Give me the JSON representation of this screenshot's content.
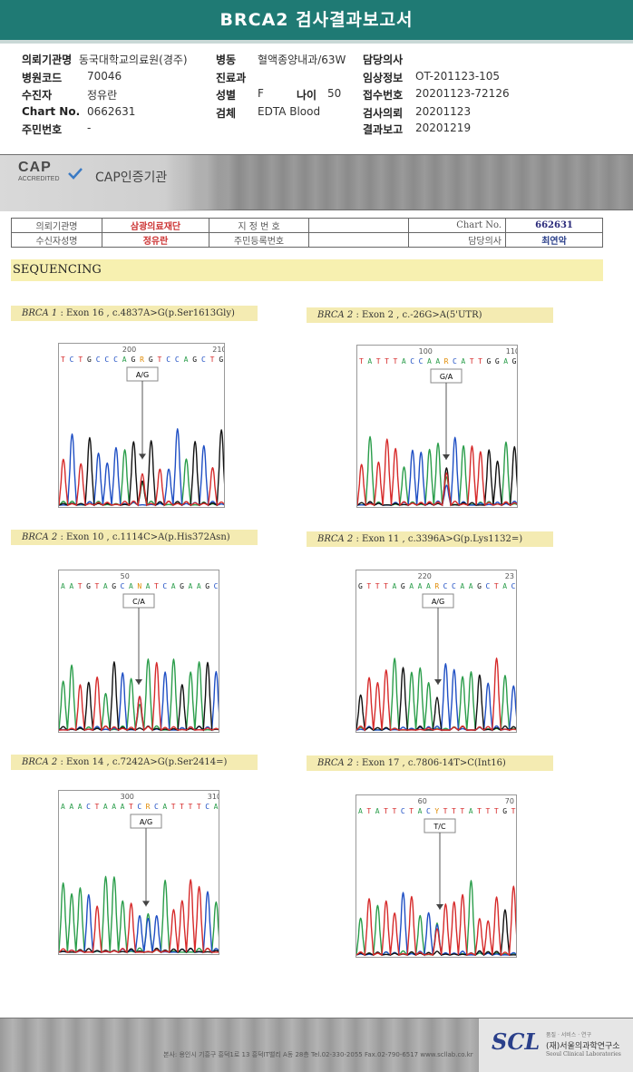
{
  "report": {
    "title": "BRCA2 검사결과보고서"
  },
  "info": {
    "hospital_label": "의뢰기관명",
    "hospital": "동국대학교의료원(경주)",
    "code_label": "병원코드",
    "code": "70046",
    "patient_label": "수진자",
    "patient": "정유란",
    "chart_label": "Chart No.",
    "chart": "0662631",
    "ssn_label": "주민번호",
    "ssn": "-",
    "ward_label": "병동",
    "ward": "혈액종양내과/63W",
    "dept_label": "진료과",
    "dept": "",
    "sex_label": "성별",
    "sex": "F",
    "age_label": "나이",
    "age": "50",
    "specimen_label": "검체",
    "specimen": "EDTA Blood",
    "doctor_label": "담당의사",
    "doctor": "",
    "clinical_label": "임상정보",
    "clinical": "OT-201123-105",
    "receipt_label": "접수번호",
    "receipt": "20201123-72126",
    "request_label": "검사의뢰",
    "request": "20201123",
    "result_label": "결과보고",
    "result": "20201219"
  },
  "banner": {
    "cap_big": "CAP",
    "cap_small": "ACCREDITED",
    "cap_text": "CAP인증기관"
  },
  "mini_table": {
    "r1c1": "의뢰기관명",
    "r1c2": "삼광의료재단",
    "r1c3": "지 정 번 호",
    "r1c4": "",
    "r1c5": "Chart No.",
    "r1c6": "662631",
    "r2c1": "수신자성명",
    "r2c2": "정유란",
    "r2c3": "주민등록번호",
    "r2c4": "",
    "r2c5": "담당의사",
    "r2c6": "최연악"
  },
  "sequencing": {
    "title": "SEQUENCING"
  },
  "panels": [
    {
      "gene": "BRCA 1",
      "desc": " : Exon 16 , c.4837A>G(p.Ser1613Gly)",
      "seq": "T C T G C C C A G R G T C C A G C T G",
      "pos1": "200",
      "pos2": "210",
      "call": "A/G"
    },
    {
      "gene": "BRCA 2",
      "desc": " : Exon 2 , c.-26G>A(5'UTR)",
      "seq": "T A T T T A C C A A R C A T T G G A G",
      "pos1": "100",
      "pos2": "110",
      "call": "G/A"
    },
    {
      "gene": "BRCA 2",
      "desc": " : Exon 10 , c.1114C>A(p.His372Asn)",
      "seq": "A A T G T A G C A N A T C A G A A G C",
      "pos1": "50",
      "pos2": "",
      "call": "C/A"
    },
    {
      "gene": "BRCA 2",
      "desc": " : Exon 11 , c.3396A>G(p.Lys1132=)",
      "seq": "G T T T A G A A A R C C A A G C T A C",
      "pos1": "220",
      "pos2": "23",
      "call": "A/G"
    },
    {
      "gene": "BRCA 2",
      "desc": " : Exon 14 , c.7242A>G(p.Ser2414=)",
      "seq": "A A A C T A A A T C R C A T T T T C A",
      "pos1": "300",
      "pos2": "310",
      "call": "A/G"
    },
    {
      "gene": "BRCA 2",
      "desc": " : Exon 17 , c.7806-14T>C(Int16)",
      "seq": "A T A T T C T A C Y T T T A T T T G T",
      "pos1": "60",
      "pos2": "70",
      "call": "T/C"
    }
  ],
  "footer": {
    "scl": "SCL",
    "scl_tag": "품질 · 서비스 · 연구",
    "scl_name": "(재)서울의과학연구소",
    "scl_en": "Seoul Clinical Laboratories",
    "address": "본사: 용인시 기흥구 흥덕1로 13 흥덕IT밸리 A동 28층  Tel.02-330-2055  Fax.02-790-6517  www.scllab.co.kr"
  },
  "colors": {
    "header": "#1f7a74",
    "A": "#2a9d4a",
    "C": "#1f4fc4",
    "G": "#111111",
    "T": "#d62a2a"
  }
}
